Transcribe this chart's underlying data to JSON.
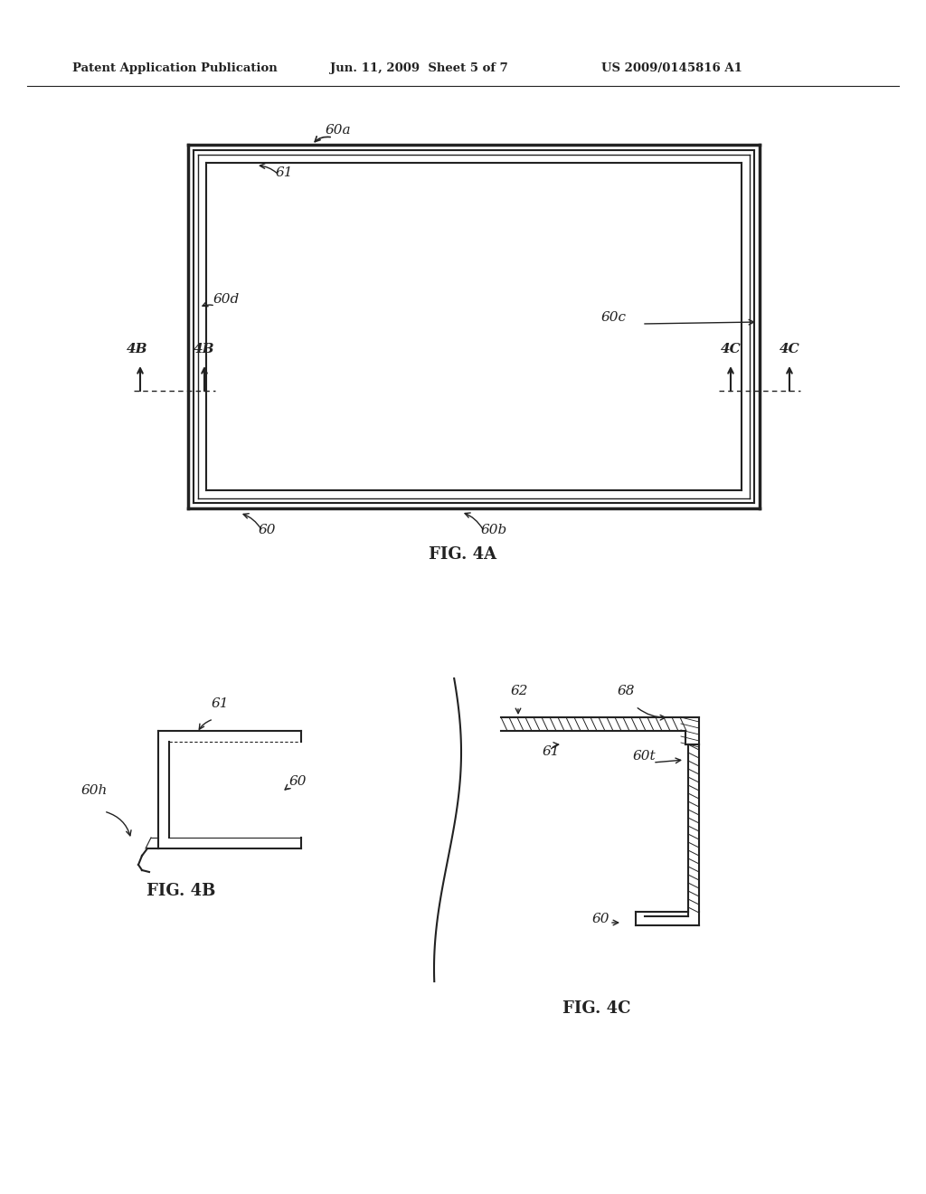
{
  "bg_color": "#ffffff",
  "header_left": "Patent Application Publication",
  "header_center": "Jun. 11, 2009  Sheet 5 of 7",
  "header_right": "US 2009/0145816 A1",
  "fig4a_label": "FIG. 4A",
  "fig4b_label": "FIG. 4B",
  "fig4c_label": "FIG. 4C",
  "label_60a": "60a",
  "label_60b": "60b",
  "label_60c": "60c",
  "label_60d": "60d",
  "label_60_4a": "60",
  "label_61_4a": "61",
  "label_4B_outer": "4B",
  "label_4B_inner": "4B",
  "label_4C_inner": "4C",
  "label_4C_outer": "4C",
  "label_61_4b": "61",
  "label_60h": "60h",
  "label_60_4b": "60",
  "label_62": "62",
  "label_68": "68",
  "label_61_4c": "61",
  "label_60t": "60t",
  "label_60_4c": "60"
}
